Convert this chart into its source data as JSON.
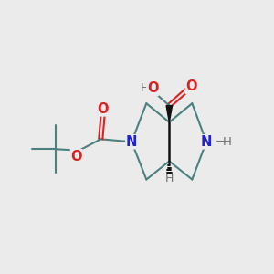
{
  "bg_color": "#ebebeb",
  "bond_color": "#4a8080",
  "bond_width": 1.5,
  "n_color": "#2020dd",
  "o_color": "#dd2020",
  "h_color": "#707070",
  "black_color": "#111111",
  "fig_width": 3.0,
  "fig_height": 3.0,
  "dpi": 100,
  "xlim": [
    0,
    10
  ],
  "ylim": [
    0,
    10
  ]
}
